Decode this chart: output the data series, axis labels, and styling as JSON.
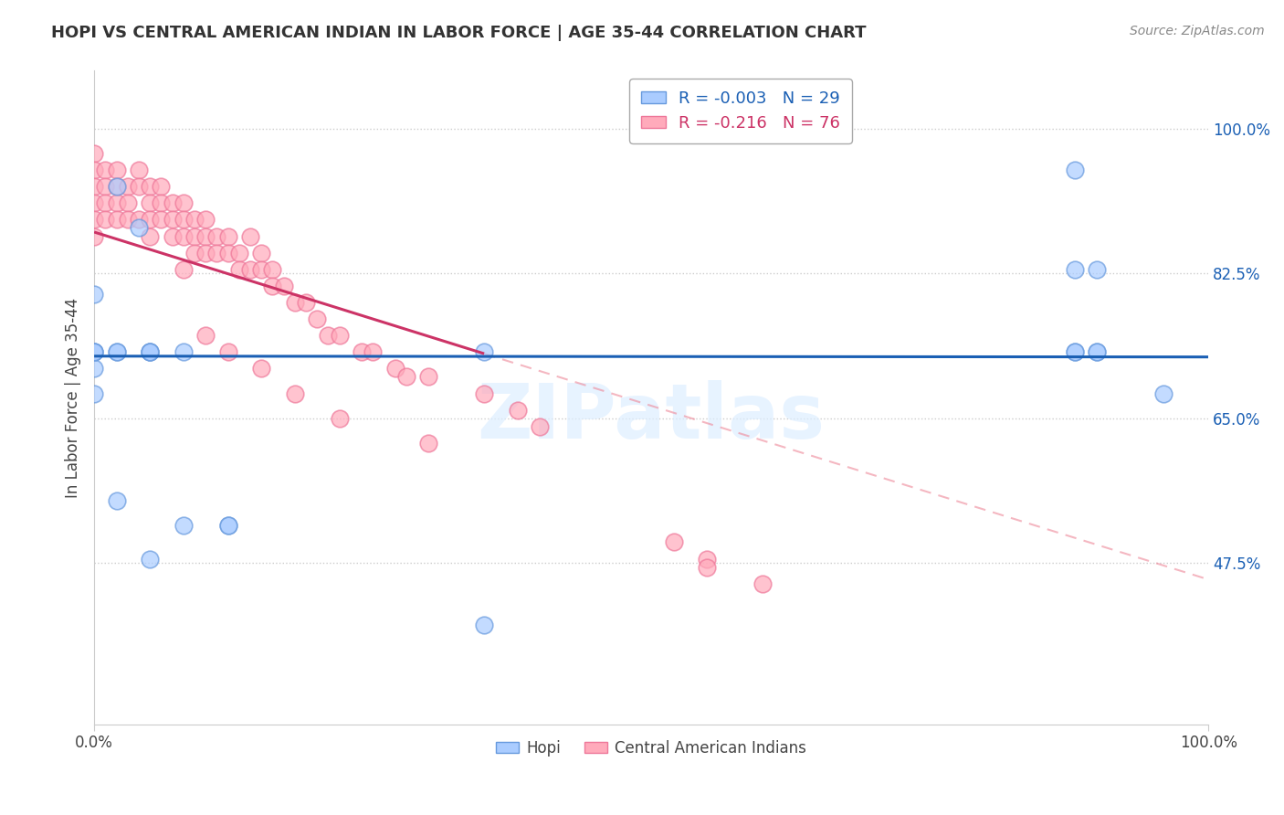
{
  "title": "HOPI VS CENTRAL AMERICAN INDIAN IN LABOR FORCE | AGE 35-44 CORRELATION CHART",
  "source_text": "Source: ZipAtlas.com",
  "ylabel": "In Labor Force | Age 35-44",
  "xlim": [
    0,
    1
  ],
  "ylim": [
    0.28,
    1.07
  ],
  "x_ticks": [
    0.0,
    1.0
  ],
  "x_tick_labels": [
    "0.0%",
    "100.0%"
  ],
  "y_ticks": [
    0.475,
    0.65,
    0.825,
    1.0
  ],
  "y_tick_labels": [
    "47.5%",
    "65.0%",
    "82.5%",
    "100.0%"
  ],
  "grid_color": "#dddddd",
  "background_color": "#ffffff",
  "hopi_color": "#aaccff",
  "hopi_edge_color": "#6699dd",
  "central_color": "#ffaabb",
  "central_edge_color": "#ee7799",
  "hopi_R": -0.003,
  "hopi_N": 29,
  "central_R": -0.216,
  "central_N": 76,
  "watermark": "ZIPatlas",
  "hopi_trend_y_intercept": 0.725,
  "hopi_trend_slope": -0.001,
  "central_trend_y_start": 0.875,
  "central_trend_slope": -0.42,
  "hopi_x": [
    0.02,
    0.04,
    0.0,
    0.0,
    0.0,
    0.02,
    0.05,
    0.08,
    0.08,
    0.12,
    0.12,
    0.05,
    0.05,
    0.0,
    0.0,
    0.0,
    0.02,
    0.02,
    0.88,
    0.9,
    0.88,
    0.9,
    0.88,
    0.9,
    0.35,
    0.88,
    0.96,
    0.35,
    0.05
  ],
  "hopi_y": [
    0.93,
    0.88,
    0.8,
    0.73,
    0.71,
    0.73,
    0.73,
    0.73,
    0.52,
    0.52,
    0.52,
    0.48,
    0.73,
    0.73,
    0.73,
    0.68,
    0.73,
    0.55,
    0.95,
    0.83,
    0.83,
    0.73,
    0.73,
    0.73,
    0.73,
    0.73,
    0.68,
    0.4,
    0.73
  ],
  "central_x": [
    0.0,
    0.0,
    0.0,
    0.0,
    0.0,
    0.0,
    0.01,
    0.01,
    0.01,
    0.01,
    0.02,
    0.02,
    0.02,
    0.02,
    0.03,
    0.03,
    0.03,
    0.04,
    0.04,
    0.04,
    0.05,
    0.05,
    0.05,
    0.05,
    0.06,
    0.06,
    0.06,
    0.07,
    0.07,
    0.07,
    0.08,
    0.08,
    0.08,
    0.09,
    0.09,
    0.09,
    0.1,
    0.1,
    0.1,
    0.11,
    0.11,
    0.12,
    0.12,
    0.13,
    0.13,
    0.14,
    0.14,
    0.15,
    0.15,
    0.16,
    0.16,
    0.17,
    0.18,
    0.19,
    0.2,
    0.21,
    0.22,
    0.24,
    0.25,
    0.27,
    0.28,
    0.3,
    0.35,
    0.38,
    0.4,
    0.08,
    0.1,
    0.12,
    0.15,
    0.18,
    0.22,
    0.3,
    0.52,
    0.55,
    0.55,
    0.6
  ],
  "central_y": [
    0.97,
    0.95,
    0.93,
    0.91,
    0.89,
    0.87,
    0.95,
    0.93,
    0.91,
    0.89,
    0.95,
    0.93,
    0.91,
    0.89,
    0.93,
    0.91,
    0.89,
    0.95,
    0.93,
    0.89,
    0.93,
    0.91,
    0.89,
    0.87,
    0.93,
    0.91,
    0.89,
    0.91,
    0.89,
    0.87,
    0.91,
    0.89,
    0.87,
    0.89,
    0.87,
    0.85,
    0.89,
    0.87,
    0.85,
    0.87,
    0.85,
    0.87,
    0.85,
    0.85,
    0.83,
    0.87,
    0.83,
    0.85,
    0.83,
    0.83,
    0.81,
    0.81,
    0.79,
    0.79,
    0.77,
    0.75,
    0.75,
    0.73,
    0.73,
    0.71,
    0.7,
    0.7,
    0.68,
    0.66,
    0.64,
    0.83,
    0.75,
    0.73,
    0.71,
    0.68,
    0.65,
    0.62,
    0.5,
    0.48,
    0.47,
    0.45
  ]
}
